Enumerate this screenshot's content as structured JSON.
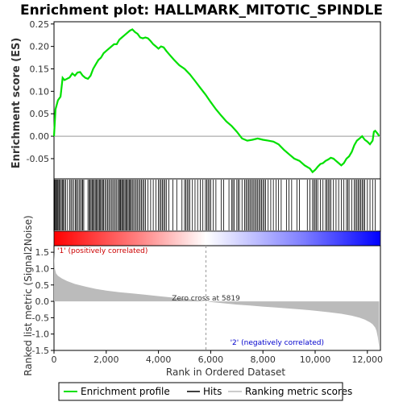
{
  "chart_data": {
    "type": "line",
    "title": "Enrichment plot: HALLMARK_MITOTIC_SPINDLE",
    "panels": {
      "enrichment": {
        "ylabel": "Enrichment score (ES)",
        "yticks": [
          0.25,
          0.2,
          0.15,
          0.1,
          0.05,
          0.0,
          -0.05
        ],
        "ylim": [
          -0.095,
          0.255
        ],
        "series": {
          "name": "Enrichment profile",
          "color": "#00e000",
          "x": [
            0,
            60,
            150,
            250,
            330,
            400,
            500,
            600,
            700,
            800,
            900,
            1000,
            1100,
            1200,
            1300,
            1400,
            1500,
            1600,
            1700,
            1800,
            1900,
            2000,
            2100,
            2200,
            2300,
            2400,
            2500,
            2600,
            2700,
            2800,
            2900,
            3000,
            3100,
            3200,
            3300,
            3400,
            3500,
            3600,
            3700,
            3800,
            3900,
            4000,
            4100,
            4200,
            4300,
            4400,
            4600,
            4800,
            5000,
            5200,
            5400,
            5600,
            5800,
            6000,
            6200,
            6400,
            6600,
            6800,
            7000,
            7200,
            7400,
            7600,
            7800,
            8000,
            8200,
            8400,
            8600,
            8800,
            9000,
            9200,
            9400,
            9600,
            9800,
            9900,
            10000,
            10100,
            10200,
            10300,
            10400,
            10500,
            10600,
            10700,
            10800,
            10900,
            11000,
            11100,
            11200,
            11300,
            11400,
            11500,
            11600,
            11700,
            11800,
            11900,
            12000,
            12100,
            12200,
            12250,
            12300,
            12400,
            12450
          ],
          "y": [
            0.0,
            0.06,
            0.08,
            0.088,
            0.13,
            0.125,
            0.128,
            0.131,
            0.14,
            0.135,
            0.142,
            0.143,
            0.135,
            0.13,
            0.128,
            0.135,
            0.15,
            0.16,
            0.17,
            0.175,
            0.185,
            0.19,
            0.195,
            0.2,
            0.205,
            0.205,
            0.215,
            0.22,
            0.225,
            0.23,
            0.235,
            0.238,
            0.232,
            0.228,
            0.22,
            0.218,
            0.22,
            0.218,
            0.212,
            0.205,
            0.2,
            0.195,
            0.2,
            0.198,
            0.19,
            0.183,
            0.17,
            0.158,
            0.15,
            0.138,
            0.123,
            0.108,
            0.093,
            0.076,
            0.06,
            0.046,
            0.033,
            0.023,
            0.01,
            -0.005,
            -0.01,
            -0.008,
            -0.005,
            -0.008,
            -0.01,
            -0.012,
            -0.018,
            -0.03,
            -0.04,
            -0.05,
            -0.055,
            -0.065,
            -0.072,
            -0.08,
            -0.075,
            -0.068,
            -0.062,
            -0.06,
            -0.055,
            -0.052,
            -0.048,
            -0.05,
            -0.055,
            -0.06,
            -0.065,
            -0.06,
            -0.05,
            -0.045,
            -0.035,
            -0.02,
            -0.01,
            -0.005,
            0.0,
            -0.008,
            -0.012,
            -0.018,
            -0.01,
            0.01,
            0.012,
            0.005,
            0.0
          ]
        }
      },
      "hits": {
        "legend_name": "Hits",
        "positions": [
          20,
          40,
          70,
          100,
          130,
          160,
          200,
          240,
          280,
          320,
          360,
          400,
          450,
          520,
          600,
          650,
          700,
          760,
          820,
          860,
          900,
          960,
          1000,
          1060,
          1100,
          1140,
          1300,
          1350,
          1380,
          1420,
          1460,
          1500,
          1540,
          1580,
          1620,
          1660,
          1700,
          1740,
          1780,
          1820,
          1860,
          1900,
          1950,
          2000,
          2050,
          2100,
          2150,
          2200,
          2250,
          2300,
          2350,
          2400,
          2450,
          2500,
          2530,
          2560,
          2600,
          2640,
          2680,
          2720,
          2760,
          2800,
          2840,
          2880,
          2920,
          2960,
          3000,
          3050,
          3100,
          3150,
          3200,
          3250,
          3300,
          3350,
          3400,
          3450,
          3500,
          3600,
          3700,
          3800,
          3900,
          4000,
          4050,
          4100,
          4150,
          4200,
          4250,
          4300,
          4400,
          4550,
          4700,
          4900,
          5000,
          5050,
          5100,
          5150,
          5200,
          5300,
          5400,
          5500,
          5600,
          5700,
          5800,
          5850,
          5900,
          5950,
          6000,
          6100,
          6200,
          6400,
          6500,
          6700,
          6800,
          6850,
          6900,
          7000,
          7050,
          7100,
          7200,
          7300,
          7350,
          7400,
          7450,
          7500,
          7550,
          7600,
          7650,
          7700,
          7750,
          7800,
          7850,
          7900,
          7950,
          8000,
          8050,
          8100,
          8200,
          8300,
          8400,
          8500,
          8600,
          8700,
          8900,
          9000,
          9100,
          9300,
          9400,
          9700,
          9800,
          9900,
          9950,
          10000,
          10050,
          10100,
          10200,
          10300,
          10400,
          10450,
          10500,
          10550,
          10600,
          10700,
          10800,
          10900,
          11000,
          11100,
          11200,
          11250,
          11300,
          11400,
          11500,
          11550,
          11600,
          11650,
          11700,
          11750,
          11800,
          11850,
          11900,
          12000,
          12100,
          12200,
          12300
        ]
      },
      "heatmap": {
        "colors": [
          "#ff0000",
          "#ffffff",
          "#0000ff"
        ]
      },
      "ranked": {
        "ylabel": "Ranked list metric (Signal2Noise)",
        "yticks": [
          1.5,
          1.0,
          0.5,
          0.0,
          -0.5,
          -1.0,
          -1.5
        ],
        "ylim": [
          -1.5,
          1.7
        ],
        "legend_name": "Ranking metric scores",
        "x": [
          0,
          30,
          80,
          150,
          300,
          500,
          800,
          1200,
          1600,
          2000,
          2500,
          3000,
          3500,
          4000,
          4500,
          5000,
          5500,
          5819,
          6000,
          6500,
          7000,
          7500,
          8000,
          8500,
          9000,
          9500,
          10000,
          10500,
          11000,
          11400,
          11700,
          11900,
          12100,
          12200,
          12300,
          12350,
          12400,
          12450
        ],
        "y": [
          1.5,
          1.0,
          0.85,
          0.78,
          0.7,
          0.62,
          0.53,
          0.45,
          0.38,
          0.33,
          0.28,
          0.24,
          0.2,
          0.16,
          0.12,
          0.08,
          0.03,
          0.0,
          -0.02,
          -0.06,
          -0.1,
          -0.13,
          -0.16,
          -0.19,
          -0.22,
          -0.25,
          -0.29,
          -0.33,
          -0.38,
          -0.44,
          -0.5,
          -0.56,
          -0.64,
          -0.7,
          -0.8,
          -0.9,
          -1.1,
          -1.4
        ],
        "zero_cross": 5819,
        "annotations": {
          "positive": "'1' (positively correlated)",
          "negative": "'2' (negatively correlated)",
          "zero_cross": "Zero cross at 5819"
        }
      }
    },
    "xlabel": "Rank in Ordered Dataset",
    "xticks": [
      0,
      2000,
      4000,
      6000,
      8000,
      10000,
      12000
    ],
    "xlim": [
      0,
      12500
    ],
    "legend": {
      "placement": "bottom",
      "entries": [
        "Enrichment profile",
        "Hits",
        "Ranking metric scores"
      ]
    }
  }
}
